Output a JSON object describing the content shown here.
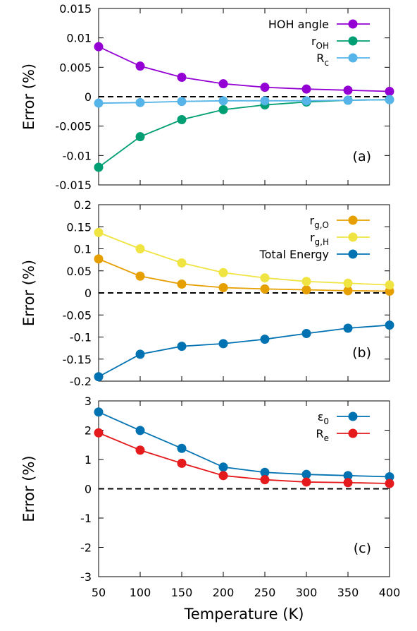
{
  "chart_data": [
    {
      "type": "line",
      "panel_label": "(a)",
      "ylabel": "Error (%)",
      "ylim": [
        -0.015,
        0.015
      ],
      "yticks": [
        "-0.015",
        "-0.01",
        "-0.005",
        "0",
        "0.005",
        "0.01",
        "0.015"
      ],
      "ytick_values": [
        -0.015,
        -0.01,
        -0.005,
        0,
        0.005,
        0.01,
        0.015
      ],
      "x": [
        50,
        100,
        150,
        200,
        250,
        300,
        350,
        400
      ],
      "legend_position": "top-right",
      "reference_line": 0,
      "series": [
        {
          "name": "HOH angle",
          "name_sub": "",
          "color": "#9400d3",
          "values": [
            0.0085,
            0.0052,
            0.0033,
            0.0022,
            0.0016,
            0.0013,
            0.0011,
            0.0009
          ]
        },
        {
          "name": "r",
          "name_sub": "OH",
          "color": "#009e73",
          "values": [
            -0.012,
            -0.0068,
            -0.0039,
            -0.0022,
            -0.0014,
            -0.0009,
            -0.0006,
            -0.0005
          ]
        },
        {
          "name": "R",
          "name_sub": "c",
          "color": "#56b4e9",
          "values": [
            -0.0011,
            -0.001,
            -0.0008,
            -0.0007,
            -0.0007,
            -0.0007,
            -0.0006,
            -0.0005
          ]
        }
      ]
    },
    {
      "type": "line",
      "panel_label": "(b)",
      "ylabel": "Error (%)",
      "ylim": [
        -0.2,
        0.2
      ],
      "yticks": [
        "-0.2",
        "-0.15",
        "-0.1",
        "-0.05",
        "0",
        "0.05",
        "0.1",
        "0.15",
        "0.2"
      ],
      "ytick_values": [
        -0.2,
        -0.15,
        -0.1,
        -0.05,
        0,
        0.05,
        0.1,
        0.15,
        0.2
      ],
      "x": [
        50,
        100,
        150,
        200,
        250,
        300,
        350,
        400
      ],
      "legend_position": "top-right",
      "reference_line": 0,
      "series": [
        {
          "name": "r",
          "name_sub": "g,O",
          "color": "#e69f00",
          "values": [
            0.077,
            0.038,
            0.02,
            0.012,
            0.009,
            0.007,
            0.005,
            0.004
          ]
        },
        {
          "name": "r",
          "name_sub": "g,H",
          "color": "#f0e442",
          "values": [
            0.137,
            0.1,
            0.068,
            0.046,
            0.034,
            0.026,
            0.022,
            0.018
          ]
        },
        {
          "name": "Total Energy",
          "name_sub": "",
          "color": "#0072b2",
          "values": [
            -0.19,
            -0.139,
            -0.121,
            -0.115,
            -0.105,
            -0.092,
            -0.08,
            -0.073
          ]
        }
      ]
    },
    {
      "type": "line",
      "panel_label": "(c)",
      "ylabel": "Error (%)",
      "xlabel": "Temperature (K)",
      "ylim": [
        -3,
        3
      ],
      "yticks": [
        "-3",
        "-2",
        "-1",
        "0",
        "1",
        "2",
        "3"
      ],
      "ytick_values": [
        -3,
        -2,
        -1,
        0,
        1,
        2,
        3
      ],
      "x": [
        50,
        100,
        150,
        200,
        250,
        300,
        350,
        400
      ],
      "xlim": [
        50,
        400
      ],
      "xticks": [
        "50",
        "100",
        "150",
        "200",
        "250",
        "300",
        "350",
        "400"
      ],
      "xtick_values": [
        50,
        100,
        150,
        200,
        250,
        300,
        350,
        400
      ],
      "legend_position": "top-right",
      "reference_line": 0,
      "series": [
        {
          "name": "ε",
          "name_sub": "0",
          "color": "#0072b2",
          "values": [
            2.62,
            1.99,
            1.38,
            0.74,
            0.56,
            0.49,
            0.45,
            0.41
          ]
        },
        {
          "name": "R",
          "name_sub": "e",
          "color": "#e41a1c",
          "values": [
            1.91,
            1.32,
            0.87,
            0.45,
            0.31,
            0.23,
            0.21,
            0.18
          ]
        }
      ]
    }
  ]
}
